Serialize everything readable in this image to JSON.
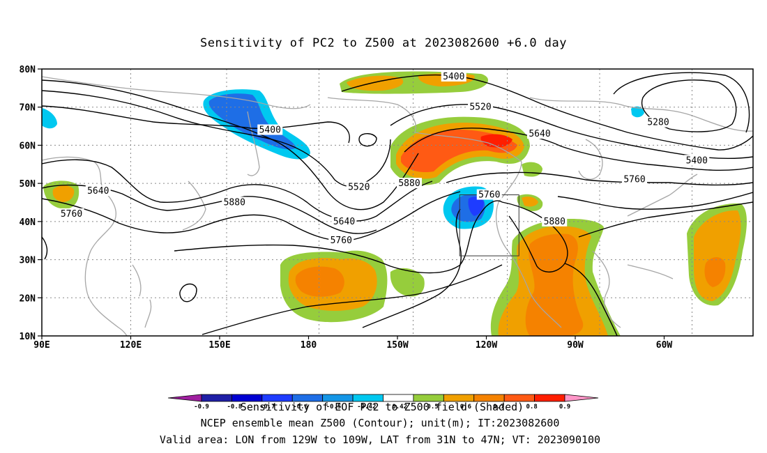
{
  "title": "Sensitivity of PC2 to Z500 at 2023082600 +6.0 day",
  "map": {
    "lat_ticks": [
      "80N",
      "70N",
      "60N",
      "50N",
      "40N",
      "30N",
      "20N",
      "10N"
    ],
    "lon_ticks": [
      "90E",
      "120E",
      "150E",
      "180",
      "150W",
      "120W",
      "90W",
      "60W"
    ],
    "lat_values": [
      80,
      70,
      60,
      50,
      40,
      30,
      20,
      10
    ],
    "lon_values": [
      90,
      120,
      150,
      180,
      210,
      240,
      270,
      300
    ],
    "lon_range": [
      90,
      330
    ],
    "lat_range": [
      10,
      80
    ],
    "validation_box": {
      "lon": [
        231,
        251
      ],
      "lat": [
        31,
        47
      ]
    },
    "contour_color": "#000000",
    "coast_color": "#a6a6a6",
    "grid_color": "#888888",
    "contour_labels": [
      {
        "text": "5400",
        "lon": 229,
        "lat": 78
      },
      {
        "text": "5520",
        "lon": 238,
        "lat": 70
      },
      {
        "text": "5640",
        "lon": 258,
        "lat": 63
      },
      {
        "text": "5280",
        "lon": 298,
        "lat": 66
      },
      {
        "text": "5400",
        "lon": 311,
        "lat": 56
      },
      {
        "text": "5760",
        "lon": 290,
        "lat": 51
      },
      {
        "text": "5880",
        "lon": 214,
        "lat": 50
      },
      {
        "text": "5760",
        "lon": 241,
        "lat": 47
      },
      {
        "text": "5880",
        "lon": 263,
        "lat": 40
      },
      {
        "text": "5400",
        "lon": 167,
        "lat": 64
      },
      {
        "text": "5520",
        "lon": 197,
        "lat": 49
      },
      {
        "text": "5640",
        "lon": 109,
        "lat": 48
      },
      {
        "text": "5640",
        "lon": 192,
        "lat": 40
      },
      {
        "text": "5760",
        "lon": 191,
        "lat": 35
      },
      {
        "text": "5760",
        "lon": 100,
        "lat": 42
      },
      {
        "text": "5880",
        "lon": 155,
        "lat": 45
      }
    ]
  },
  "colorbar": {
    "labels": [
      "-0.9",
      "-0.8",
      "-0.7",
      "-0.6",
      "-0.5",
      "-0.42",
      "0.42",
      "0.5",
      "0.6",
      "0.7",
      "0.8",
      "0.9"
    ],
    "colors": [
      "#a01fa0",
      "#1f1fa6",
      "#0000d2",
      "#1e3cff",
      "#1e6ee6",
      "#1496e6",
      "#00c8f0",
      "#ffffff",
      "#96cd3c",
      "#f0a000",
      "#f58200",
      "#ff5a14",
      "#ff1e00",
      "#ff96c8"
    ]
  },
  "footer": {
    "line1": "Sensitivity of EOF PC2 to Z500 field (Shaded)",
    "line2": "NCEP ensemble mean Z500 (Contour); unit(m); IT:2023082600",
    "line3": "Valid area: LON from 129W to 109W, LAT from 31N to 47N; VT: 2023090100"
  }
}
